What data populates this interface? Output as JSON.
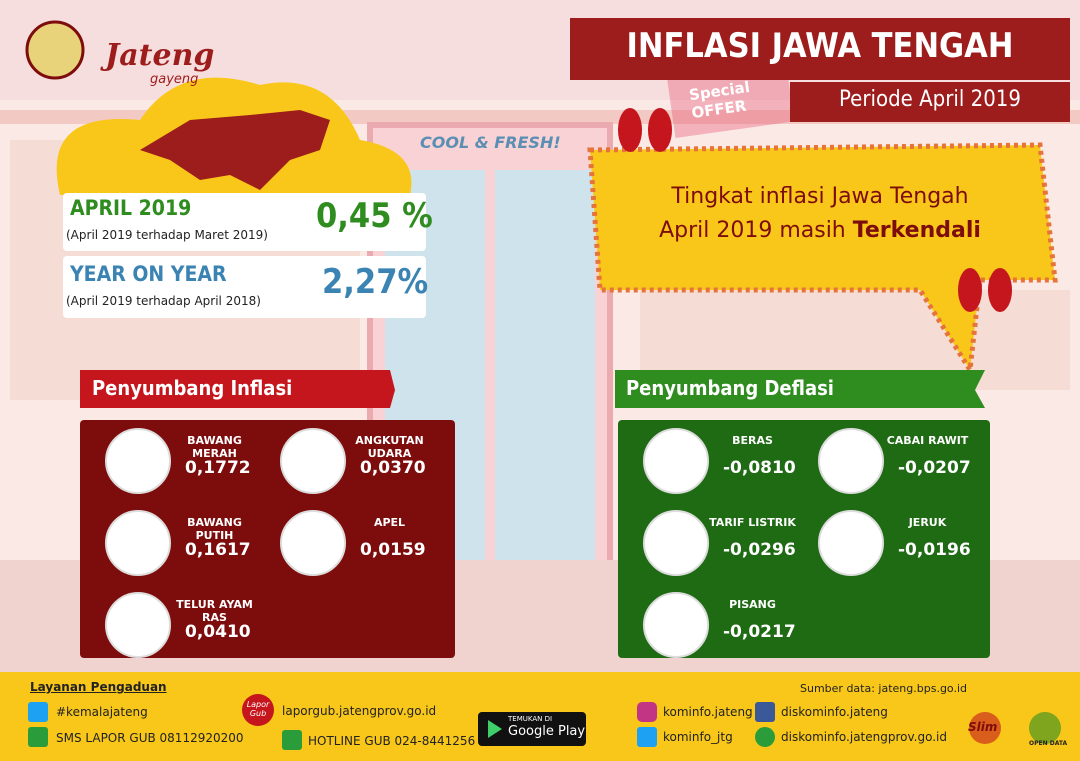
{
  "logo": {
    "name": "Jateng",
    "tagline": "gayeng"
  },
  "header": {
    "title": "INFLASI JAWA TENGAH",
    "period": "Periode April 2019"
  },
  "background": {
    "sign": "COOL & FRESH!",
    "offer": "Special OFFER"
  },
  "monthly": {
    "label": "APRIL 2019",
    "note": "(April 2019 terhadap Maret 2019)",
    "value": "0,45 %"
  },
  "yoy": {
    "label": "YEAR ON YEAR",
    "note": "(April 2019 terhadap April 2018)",
    "value": "2,27%"
  },
  "quote": {
    "line1": "Tingkat inflasi Jawa Tengah",
    "line2": "April 2019 masih",
    "emphasis": "Terkendali"
  },
  "inflation": {
    "title": "Penyumbang Inflasi",
    "items": [
      {
        "name": "BAWANG MERAH",
        "value": "0,1772"
      },
      {
        "name": "ANGKUTAN UDARA",
        "value": "0,0370"
      },
      {
        "name": "BAWANG PUTIH",
        "value": "0,1617"
      },
      {
        "name": "APEL",
        "value": "0,0159"
      },
      {
        "name": "TELUR AYAM RAS",
        "value": "0,0410"
      }
    ]
  },
  "deflation": {
    "title": "Penyumbang Deflasi",
    "items": [
      {
        "name": "BERAS",
        "value": "-0,0810"
      },
      {
        "name": "CABAI RAWIT",
        "value": "-0,0207"
      },
      {
        "name": "TARIF LISTRIK",
        "value": "-0,0296"
      },
      {
        "name": "JERUK",
        "value": "-0,0196"
      },
      {
        "name": "PISANG",
        "value": "-0,0217"
      }
    ]
  },
  "footer": {
    "complaint_title": "Layanan Pengaduan",
    "source": "Sumber data: jateng.bps.go.id",
    "twitter": "#kemalajateng",
    "sms": "SMS LAPOR GUB 08112920200",
    "lapor_logo": "Lapor Gub",
    "lapor": "laporgub.jatengprov.go.id",
    "hotline": "HOTLINE GUB 024-8441256",
    "store_pre": "TEMUKAN DI",
    "store": "Google Play",
    "instagram": "kominfo.jateng",
    "facebook": "diskominfo.jateng",
    "twitter2": "kominfo_jtg",
    "web": "diskominfo.jatengprov.go.id",
    "badge1": "Slim",
    "badge2": "OPEN DATA"
  }
}
